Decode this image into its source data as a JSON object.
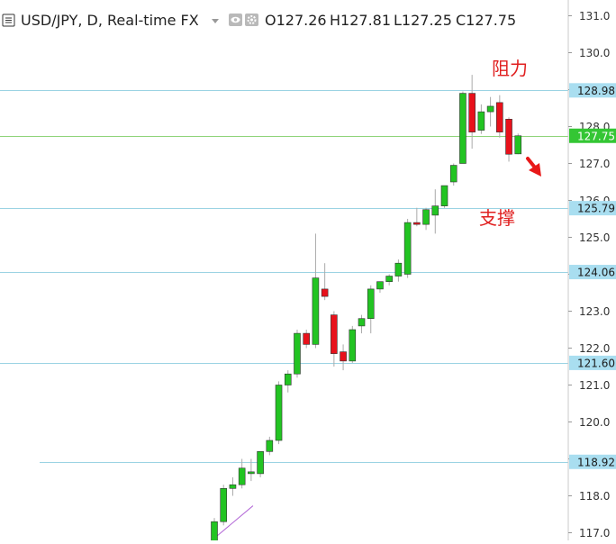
{
  "header": {
    "symbol_title": "USD/JPY, D, Real-time FX",
    "open": "O127.26",
    "high": "H127.81",
    "low": "L127.25",
    "close": "C127.75",
    "menu_icon": "hamburger-menu-icon",
    "dropdown_icon": "chevron-down-icon",
    "eye_icon": "eye-icon",
    "settings_icon": "gear-icon"
  },
  "annotations": {
    "resistance": "阻力",
    "support": "支撑",
    "arrow_icon": "down-right-arrow-icon"
  },
  "colors": {
    "up": "#22c422",
    "down": "#e8111b",
    "level_line": "#9bd3e3",
    "price_line": "#8fd47a",
    "trend_line": "#b266d6",
    "annotation_text": "#e02020",
    "current_price_bg": "#34c634"
  },
  "chart_data": {
    "type": "candlestick",
    "symbol": "USD/JPY",
    "interval": "D",
    "ylim": [
      116.7,
      131.2
    ],
    "y_ticks": [
      117.0,
      118.0,
      119.0,
      120.0,
      121.0,
      122.0,
      123.0,
      124.0,
      125.0,
      126.0,
      127.0,
      128.0,
      129.0,
      130.0,
      131.0
    ],
    "levels": [
      {
        "value": 128.98,
        "label": "128.98"
      },
      {
        "value": 125.79,
        "label": "125.79"
      },
      {
        "value": 124.06,
        "label": "124.06"
      },
      {
        "value": 121.6,
        "label": "121.60"
      },
      {
        "value": 118.92,
        "label": "118.92"
      }
    ],
    "current_price": {
      "value": 127.75,
      "label": "127.75"
    },
    "trendline": {
      "start": [
        -0.3,
        116.79
      ],
      "end": [
        4.2,
        117.73
      ]
    },
    "candles": [
      {
        "o": 116.4,
        "h": 117.4,
        "l": 116.2,
        "c": 117.3
      },
      {
        "o": 117.3,
        "h": 118.3,
        "l": 117.2,
        "c": 118.2
      },
      {
        "o": 118.2,
        "h": 118.5,
        "l": 118.0,
        "c": 118.3
      },
      {
        "o": 118.3,
        "h": 119.0,
        "l": 118.2,
        "c": 118.75
      },
      {
        "o": 118.6,
        "h": 119.0,
        "l": 118.4,
        "c": 118.65
      },
      {
        "o": 118.6,
        "h": 119.2,
        "l": 118.5,
        "c": 119.2
      },
      {
        "o": 119.2,
        "h": 119.6,
        "l": 119.1,
        "c": 119.5
      },
      {
        "o": 119.5,
        "h": 121.1,
        "l": 119.4,
        "c": 121.0
      },
      {
        "o": 121.0,
        "h": 121.4,
        "l": 120.8,
        "c": 121.3
      },
      {
        "o": 121.3,
        "h": 122.5,
        "l": 121.2,
        "c": 122.4
      },
      {
        "o": 122.4,
        "h": 122.5,
        "l": 122.0,
        "c": 122.1
      },
      {
        "o": 122.1,
        "h": 125.1,
        "l": 122.0,
        "c": 123.9
      },
      {
        "o": 123.6,
        "h": 124.3,
        "l": 123.3,
        "c": 123.4
      },
      {
        "o": 122.9,
        "h": 123.0,
        "l": 121.5,
        "c": 121.85
      },
      {
        "o": 121.9,
        "h": 122.1,
        "l": 121.4,
        "c": 121.65
      },
      {
        "o": 121.65,
        "h": 122.6,
        "l": 121.6,
        "c": 122.5
      },
      {
        "o": 122.6,
        "h": 122.9,
        "l": 122.4,
        "c": 122.8
      },
      {
        "o": 122.8,
        "h": 123.7,
        "l": 122.4,
        "c": 123.6
      },
      {
        "o": 123.6,
        "h": 123.8,
        "l": 123.5,
        "c": 123.8
      },
      {
        "o": 123.8,
        "h": 124.0,
        "l": 123.7,
        "c": 123.95
      },
      {
        "o": 123.95,
        "h": 124.4,
        "l": 123.8,
        "c": 124.3
      },
      {
        "o": 124.0,
        "h": 125.5,
        "l": 123.9,
        "c": 125.4
      },
      {
        "o": 125.4,
        "h": 125.8,
        "l": 125.3,
        "c": 125.35
      },
      {
        "o": 125.35,
        "h": 125.8,
        "l": 125.2,
        "c": 125.75
      },
      {
        "o": 125.6,
        "h": 126.3,
        "l": 125.1,
        "c": 125.85
      },
      {
        "o": 125.85,
        "h": 126.4,
        "l": 125.8,
        "c": 126.4
      },
      {
        "o": 126.5,
        "h": 127.0,
        "l": 126.4,
        "c": 126.95
      },
      {
        "o": 127.0,
        "h": 128.95,
        "l": 127.0,
        "c": 128.9
      },
      {
        "o": 128.9,
        "h": 129.4,
        "l": 127.4,
        "c": 127.85
      },
      {
        "o": 127.9,
        "h": 128.6,
        "l": 127.8,
        "c": 128.4
      },
      {
        "o": 128.4,
        "h": 128.8,
        "l": 128.0,
        "c": 128.55
      },
      {
        "o": 128.65,
        "h": 128.85,
        "l": 127.7,
        "c": 127.85
      },
      {
        "o": 128.2,
        "h": 128.25,
        "l": 127.05,
        "c": 127.25
      },
      {
        "o": 127.26,
        "h": 127.81,
        "l": 127.25,
        "c": 127.75
      }
    ]
  }
}
